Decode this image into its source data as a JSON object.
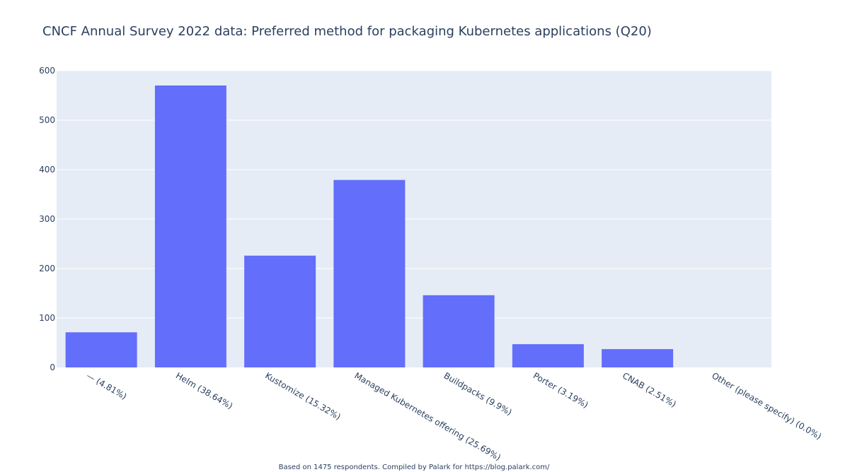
{
  "chart_data": {
    "type": "bar",
    "title": "CNCF Annual Survey 2022 data: Preferred method for packaging Kubernetes applications (Q20)",
    "categories": [
      "— (4.81%)",
      "Helm (38.64%)",
      "Kustomize (15.32%)",
      "Managed Kubernetes offering (25.69%)",
      "Buildpacks (9.9%)",
      "Porter (3.19%)",
      "CNAB (2.51%)",
      "Other (please specify) (0.0%)"
    ],
    "values": [
      71,
      570,
      226,
      379,
      146,
      47,
      37,
      0
    ],
    "ylim": [
      0,
      600
    ],
    "yticks": [
      0,
      100,
      200,
      300,
      400,
      500,
      600
    ],
    "xlabel": "",
    "ylabel": "",
    "footnote": "Based on 1475 respondents. Compiled by Palark for https://blog.palark.com/",
    "colors": {
      "bar": "#636efa",
      "plot_bg": "#e5ecf6",
      "grid": "#ffffff",
      "text": "#2a3f5f"
    }
  }
}
